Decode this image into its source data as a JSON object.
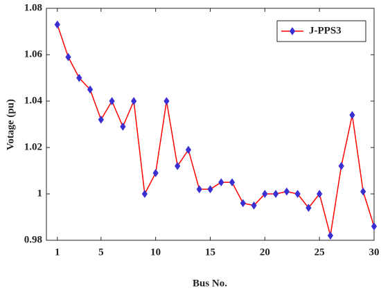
{
  "chart_data": {
    "type": "line",
    "xlabel": "Bus No.",
    "ylabel": "Votage (pu)",
    "x": [
      1,
      2,
      3,
      4,
      5,
      6,
      7,
      8,
      9,
      10,
      11,
      12,
      13,
      14,
      15,
      16,
      17,
      18,
      19,
      20,
      21,
      22,
      23,
      24,
      25,
      26,
      27,
      28,
      29,
      30
    ],
    "series": [
      {
        "name": "J-PPS3",
        "color": "#ff0000",
        "marker_color": "#3a2fd0",
        "values": [
          1.073,
          1.059,
          1.05,
          1.045,
          1.032,
          1.04,
          1.029,
          1.04,
          1.0,
          1.009,
          1.04,
          1.012,
          1.019,
          1.002,
          1.002,
          1.005,
          1.005,
          0.996,
          0.995,
          1.0,
          1.0,
          1.001,
          1.0,
          0.994,
          1.0,
          0.982,
          1.012,
          1.034,
          1.001,
          0.986
        ]
      }
    ],
    "xlim": [
      0,
      30
    ],
    "xticks": [
      1,
      5,
      10,
      15,
      20,
      25,
      30
    ],
    "ylim": [
      0.98,
      1.08
    ],
    "yticks": [
      0.98,
      1,
      1.02,
      1.04,
      1.06,
      1.08
    ],
    "grid": false,
    "legend": "upper right"
  }
}
